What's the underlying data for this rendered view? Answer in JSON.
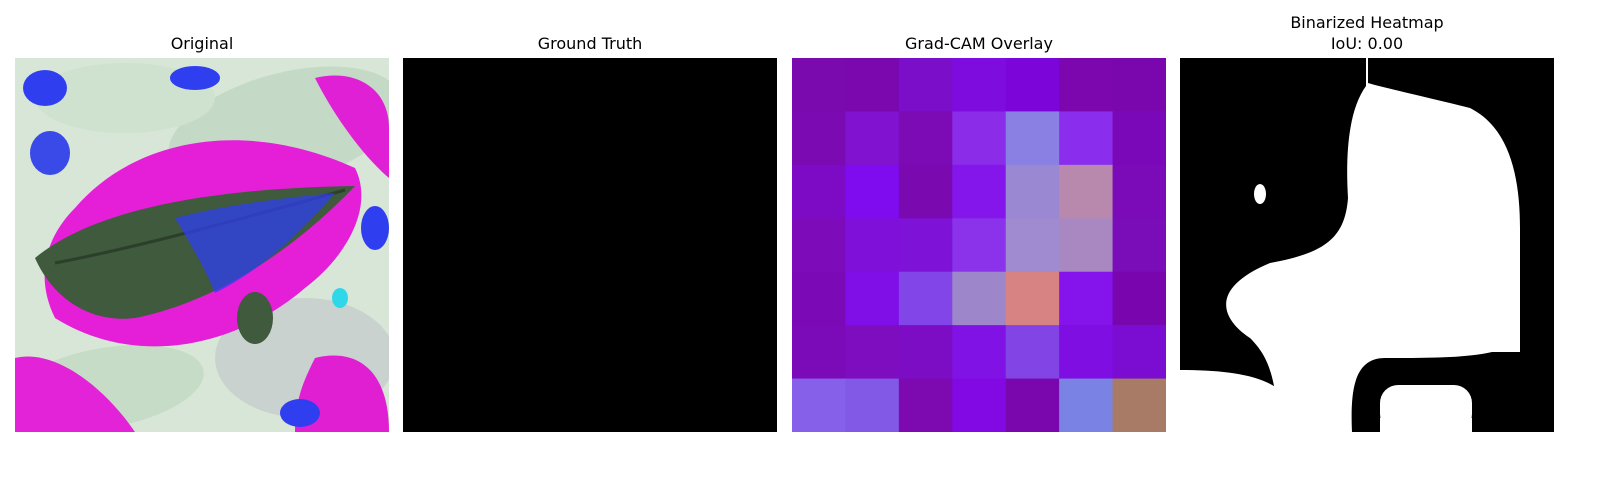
{
  "panels": [
    {
      "title": "Original"
    },
    {
      "title": "Ground Truth"
    },
    {
      "title": "Grad-CAM Overlay"
    },
    {
      "title": "Binarized Heatmap",
      "subtitle": "IoU: 0.00"
    }
  ],
  "colors": {
    "background": "#ffffff",
    "mask_on": "#ffffff",
    "mask_off": "#000000",
    "magenta": "#e51fd8",
    "leaf_green": "#3f5a3c",
    "pale_green": "#cfe0cf",
    "blue": "#2f3ff0"
  },
  "gradcam_grid": [
    [
      "#7a0aad",
      "#7a08ae",
      "#7a0ec9",
      "#7f0cdf",
      "#7c05da",
      "#7c07ae",
      "#7a07ad"
    ],
    [
      "#7c0ab2",
      "#8012d0",
      "#7c0bb5",
      "#8a2ce8",
      "#8a80e4",
      "#8a2ded",
      "#7b08b8"
    ],
    [
      "#7d0bc5",
      "#7f0cef",
      "#7a09b0",
      "#8416eb",
      "#9b88d3",
      "#b888ad",
      "#7b0bb8"
    ],
    [
      "#7d0bba",
      "#7f10d9",
      "#7e12d6",
      "#8a33ea",
      "#a08ad0",
      "#a988c2",
      "#7a0db7"
    ],
    [
      "#7b09b6",
      "#800fe7",
      "#8245e7",
      "#9d86c9",
      "#d88383",
      "#8414eb",
      "#7905ae"
    ],
    [
      "#7b0ab8",
      "#7e0dbf",
      "#7d0dc5",
      "#8012e5",
      "#8244e4",
      "#7f0ee2",
      "#7b0dd3"
    ],
    [
      "#8760e9",
      "#8258e6",
      "#7c0ab0",
      "#8209e4",
      "#7a06ad",
      "#7a83e4",
      "#a87b66"
    ]
  ]
}
